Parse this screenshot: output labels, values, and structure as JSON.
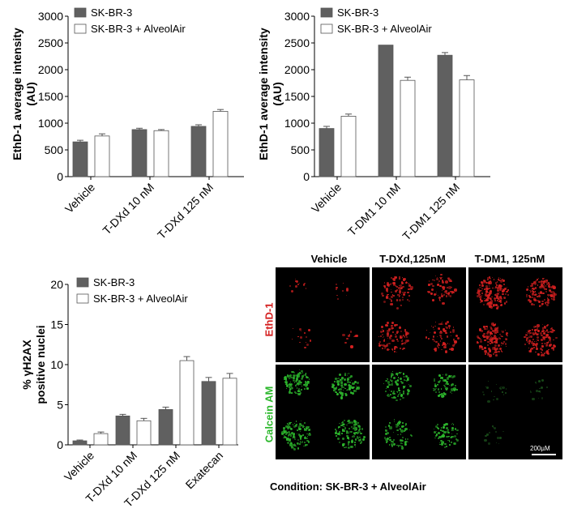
{
  "chart_data": [
    {
      "type": "bar",
      "ylabel": "EthD-1 average intensity\n(AU)",
      "ylim": [
        0,
        3000
      ],
      "yticks": [
        0,
        500,
        1000,
        1500,
        2000,
        2500,
        3000
      ],
      "categories": [
        "Vehicle",
        "T-DXd 10 nM",
        "T-DXd 125 nM"
      ],
      "series": [
        {
          "name": "SK-BR-3",
          "color": "#606060",
          "values": [
            650,
            880,
            940
          ],
          "errors": [
            30,
            25,
            30
          ]
        },
        {
          "name": "SK-BR-3 + AlveolAir",
          "color": "#ffffff",
          "values": [
            760,
            860,
            1220
          ],
          "errors": [
            40,
            20,
            35
          ]
        }
      ],
      "legend": "top-left",
      "grid": false
    },
    {
      "type": "bar",
      "ylabel": "EthD-1 average intensity\n(AU)",
      "ylim": [
        0,
        3000
      ],
      "yticks": [
        0,
        500,
        1000,
        1500,
        2000,
        2500,
        3000
      ],
      "categories": [
        "Vehicle",
        "T-DM1 10 nM",
        "T-DM1 125 nM"
      ],
      "series": [
        {
          "name": "SK-BR-3",
          "color": "#606060",
          "values": [
            900,
            2460,
            2270
          ],
          "errors": [
            40,
            0,
            50
          ]
        },
        {
          "name": "SK-BR-3 + AlveolAir",
          "color": "#ffffff",
          "values": [
            1130,
            1800,
            1810
          ],
          "errors": [
            40,
            60,
            80
          ]
        }
      ],
      "legend": "top-left",
      "grid": false
    },
    {
      "type": "bar",
      "ylabel": "% γH2AX\npositive nuclei",
      "ylim": [
        0,
        20
      ],
      "yticks": [
        0,
        5,
        10,
        15,
        20
      ],
      "categories": [
        "Vehicle",
        "T-DXd 10 nM",
        "T-DXd 125 nM",
        "Exatecan"
      ],
      "series": [
        {
          "name": "SK-BR-3",
          "color": "#606060",
          "values": [
            0.5,
            3.6,
            4.4,
            7.9
          ],
          "errors": [
            0.1,
            0.2,
            0.3,
            0.5
          ]
        },
        {
          "name": "SK-BR-3 + AlveolAir",
          "color": "#ffffff",
          "values": [
            1.4,
            3.0,
            10.5,
            8.3
          ],
          "errors": [
            0.2,
            0.3,
            0.5,
            0.6
          ]
        }
      ],
      "legend": "top-left",
      "grid": false
    }
  ],
  "micrographs": {
    "columns": [
      "Vehicle",
      "T-DXd,125nM",
      "T-DM1, 125nM"
    ],
    "rows": [
      {
        "label": "EthD-1",
        "color": "#d42020"
      },
      {
        "label": "Calcein AM",
        "color": "#2db82d"
      }
    ],
    "scale_bar": "200µM",
    "caption": "Condition: SK-BR-3 + AlveolAir"
  }
}
